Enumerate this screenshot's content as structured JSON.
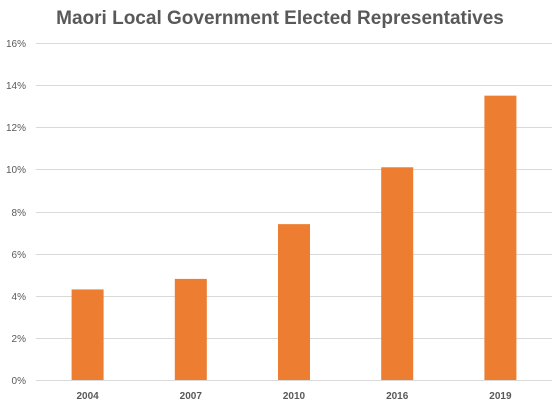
{
  "chart_data": {
    "type": "bar",
    "title": "Maori Local Government Elected Representatives",
    "xlabel": "",
    "ylabel": "",
    "categories": [
      "2004",
      "2007",
      "2010",
      "2016",
      "2019"
    ],
    "values": [
      4.3,
      4.8,
      7.4,
      10.1,
      13.5
    ],
    "value_unit": "%",
    "ylim": [
      0,
      16
    ],
    "yticks": [
      0,
      2,
      4,
      6,
      8,
      10,
      12,
      14,
      16
    ],
    "ytick_labels": [
      "0%",
      "2%",
      "4%",
      "6%",
      "8%",
      "10%",
      "12%",
      "14%",
      "16%"
    ],
    "grid": true,
    "legend": "none",
    "bar_color": "#ED7D31",
    "grid_color": "#D9D9D9",
    "text_color": "#595959"
  }
}
